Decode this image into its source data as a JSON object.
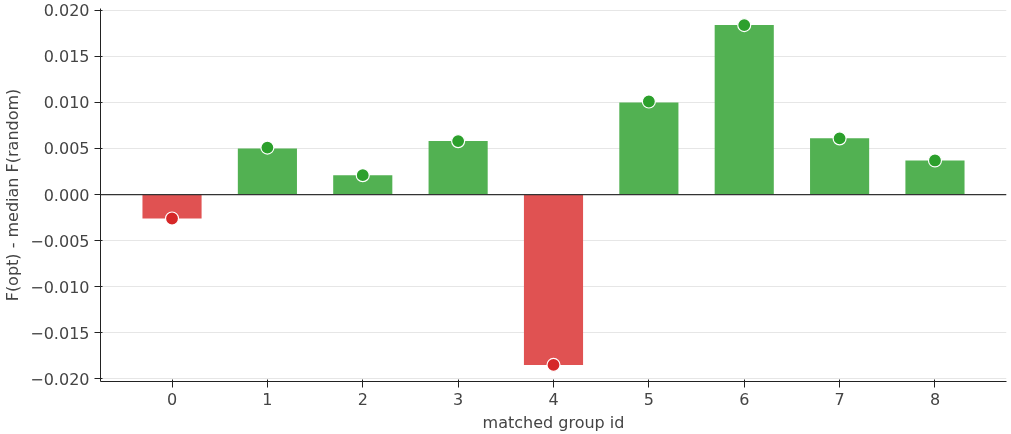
{
  "chart_data": {
    "type": "bar",
    "xlabel": "matched group id",
    "ylabel": "F(opt) - median F(random)",
    "categories": [
      "0",
      "1",
      "2",
      "3",
      "4",
      "5",
      "6",
      "7",
      "8"
    ],
    "series": [
      {
        "colors": [
          "#e05252",
          "#52b152",
          "#52b152",
          "#52b152",
          "#e05252",
          "#52b152",
          "#52b152",
          "#52b152",
          "#52b152"
        ],
        "values": [
          -0.0026,
          0.005,
          0.0021,
          0.0058,
          -0.0185,
          0.01,
          0.0184,
          0.0061,
          0.0037
        ]
      },
      {
        "type": "scatter",
        "x": [
          "0",
          "1",
          "2",
          "3",
          "4",
          "5",
          "6",
          "7",
          "8"
        ],
        "colors": [
          "#d62728",
          "#2ca02c",
          "#2ca02c",
          "#2ca02c",
          "#d62728",
          "#2ca02c",
          "#2ca02c",
          "#2ca02c",
          "#2ca02c"
        ],
        "values": [
          -0.0026,
          0.0051,
          0.0021,
          0.0058,
          -0.0185,
          0.0101,
          0.0184,
          0.0061,
          0.0037
        ]
      }
    ],
    "marker": "circle",
    "ylim": [
      -0.0203,
      0.0202
    ],
    "yticks": [
      {
        "value": -0.02,
        "label": "−0.020"
      },
      {
        "value": -0.015,
        "label": "−0.015"
      },
      {
        "value": -0.01,
        "label": "−0.010"
      },
      {
        "value": -0.005,
        "label": "−0.005"
      },
      {
        "value": 0,
        "label": "0.000"
      },
      {
        "value": 0.005,
        "label": "0.005"
      },
      {
        "value": 0.01,
        "label": "0.010"
      },
      {
        "value": 0.015,
        "label": "0.015"
      },
      {
        "value": 0.02,
        "label": "0.020"
      }
    ],
    "ref_lines": [
      {
        "axis": "y",
        "value": 0,
        "color": "#333333",
        "line_style": "solid"
      }
    ],
    "grid": "y"
  }
}
